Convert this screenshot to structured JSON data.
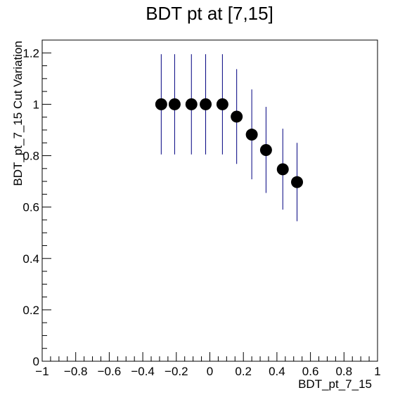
{
  "chart_data": {
    "type": "scatter",
    "title": "BDT pt at [7,15]",
    "xlabel": "BDT_pt_7_15",
    "ylabel": "BDT_pt_7_15 Cut Variation",
    "xlim": [
      -1,
      1
    ],
    "ylim": [
      0,
      1.25
    ],
    "grid": false,
    "x_ticks": [
      "−1",
      "−0.8",
      "−0.6",
      "−0.4",
      "−0.2",
      "0",
      "0.2",
      "0.4",
      "0.6",
      "0.8",
      "1"
    ],
    "y_ticks": [
      "0",
      "0.2",
      "0.4",
      "0.6",
      "0.8",
      "1",
      "1.2"
    ],
    "series": [
      {
        "x": [
          -0.29,
          -0.21,
          -0.11,
          -0.025,
          0.075,
          0.16,
          0.25,
          0.335,
          0.435,
          0.52
        ],
        "y": [
          1.0,
          1.0,
          1.0,
          1.0,
          1.0,
          0.952,
          0.882,
          0.822,
          0.747,
          0.697
        ],
        "y_low": [
          0.805,
          0.805,
          0.805,
          0.805,
          0.805,
          0.768,
          0.708,
          0.655,
          0.59,
          0.545
        ],
        "y_high": [
          1.195,
          1.195,
          1.195,
          1.195,
          1.195,
          1.137,
          1.058,
          0.99,
          0.905,
          0.85
        ],
        "marker_color": "#000000",
        "error_color": "#000080"
      }
    ]
  }
}
